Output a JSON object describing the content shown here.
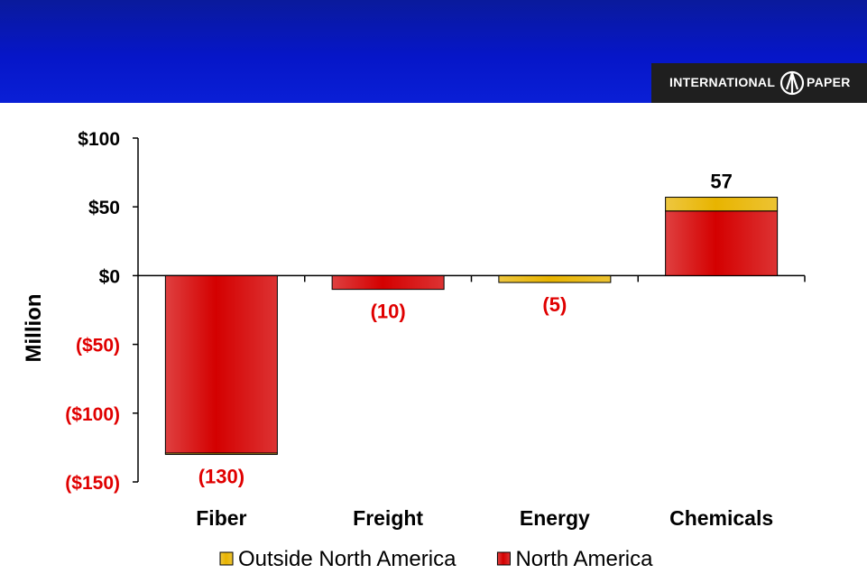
{
  "logo": {
    "text_left": "INTERNATIONAL",
    "text_right": "PAPER",
    "mark": "international-paper-tree-mark"
  },
  "chart_data": {
    "type": "bar",
    "stacked": true,
    "ylabel": "Million",
    "ylim": [
      -150,
      100
    ],
    "yticks": [
      100,
      50,
      0,
      -50,
      -100,
      -150
    ],
    "ytick_labels": [
      "$100",
      "$50",
      "$0",
      "($50)",
      "($100)",
      "($150)"
    ],
    "categories": [
      "Fiber",
      "Freight",
      "Energy",
      "Chemicals"
    ],
    "series": [
      {
        "name": "North America",
        "color": "#d40000",
        "values": [
          -129,
          -10,
          0,
          47
        ]
      },
      {
        "name": "Outside North America",
        "color": "#e8b400",
        "values": [
          -1,
          0,
          -5,
          10
        ]
      }
    ],
    "totals": [
      -130,
      -10,
      -5,
      57
    ],
    "data_labels": [
      "(130)",
      "(10)",
      "(5)",
      "57"
    ],
    "colors": {
      "negative_text": "#e00000",
      "positive_text": "#000000"
    },
    "grid": false,
    "legend": {
      "placement": "bottom",
      "order": [
        "Outside North America",
        "North America"
      ]
    }
  }
}
